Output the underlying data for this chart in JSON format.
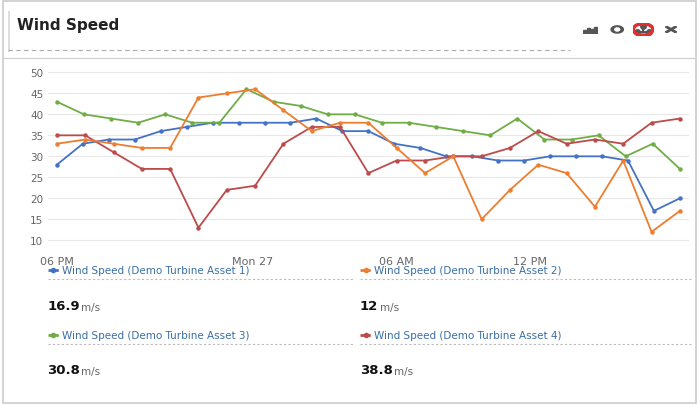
{
  "title": "Wind Speed",
  "x_labels": [
    "06 PM",
    "Mon 27",
    "06 AM",
    "12 PM"
  ],
  "ylim": [
    8,
    52
  ],
  "yticks": [
    10,
    15,
    20,
    25,
    30,
    35,
    40,
    45,
    50
  ],
  "series": {
    "asset1": {
      "color": "#4472C4",
      "label": "Wind Speed (Demo Turbine Asset 1)",
      "value": "16.9",
      "unit": "m/s",
      "y": [
        28,
        33,
        34,
        34,
        36,
        37,
        38,
        38,
        38,
        38,
        39,
        36,
        36,
        33,
        32,
        30,
        30,
        29,
        29,
        30,
        30,
        30,
        29,
        17,
        20
      ]
    },
    "asset2": {
      "color": "#ED7D31",
      "label": "Wind Speed (Demo Turbine Asset 2)",
      "value": "12",
      "unit": "m/s",
      "y": [
        33,
        34,
        33,
        32,
        32,
        44,
        45,
        46,
        41,
        36,
        38,
        38,
        32,
        26,
        30,
        15,
        22,
        28,
        26,
        18,
        29,
        12,
        17
      ]
    },
    "asset3": {
      "color": "#70AD47",
      "label": "Wind Speed (Demo Turbine Asset 3)",
      "value": "30.8",
      "unit": "m/s",
      "y": [
        43,
        40,
        39,
        38,
        40,
        38,
        38,
        46,
        43,
        42,
        40,
        40,
        38,
        38,
        37,
        36,
        35,
        39,
        34,
        34,
        35,
        30,
        33,
        27
      ]
    },
    "asset4": {
      "color": "#BC4B4B",
      "label": "Wind Speed (Demo Turbine Asset 4)",
      "value": "38.8",
      "unit": "m/s",
      "y": [
        35,
        35,
        31,
        27,
        27,
        13,
        22,
        23,
        33,
        37,
        37,
        26,
        29,
        29,
        30,
        30,
        32,
        36,
        33,
        34,
        33,
        38,
        39
      ]
    }
  },
  "bg_color": "#FFFFFF",
  "panel_border_color": "#CCCCCC",
  "grid_color": "#E8E8E8",
  "title_color": "#222222",
  "label_color": "#4472C4",
  "axis_label_color": "#666666",
  "icon_color": "#555555",
  "sep_color": "#CCCCCC",
  "value_color": "#111111"
}
